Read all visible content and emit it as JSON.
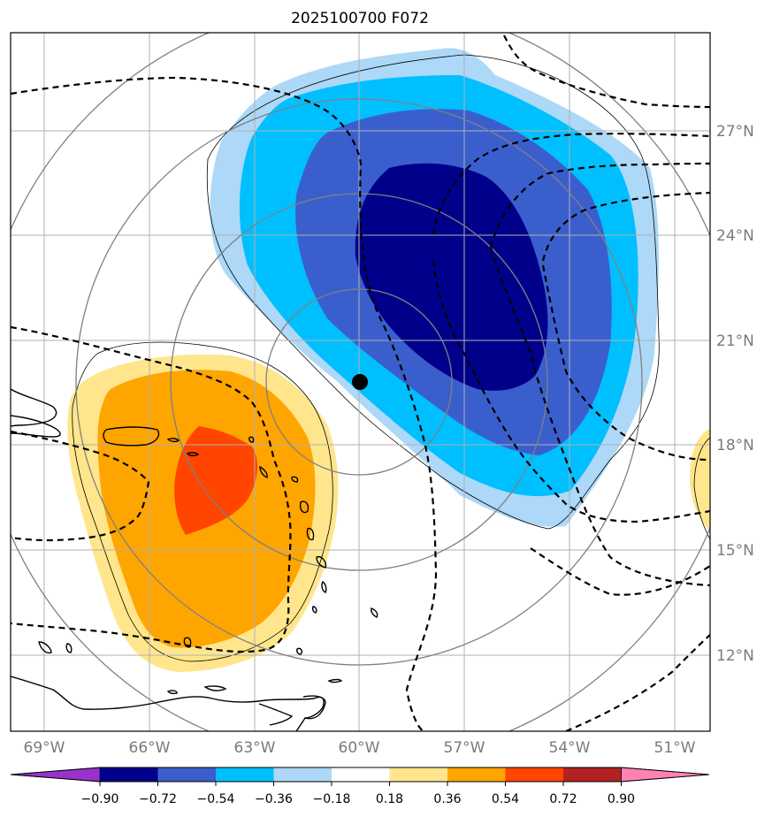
{
  "chart_data": {
    "type": "contour-map",
    "title": "2025100700 F072",
    "projection": "lat-lon map, Caribbean / western Atlantic",
    "lon_range": [
      -70,
      -50.2
    ],
    "lat_range": [
      9.5,
      29.2
    ],
    "lon_ticks": [
      {
        "value": -69,
        "label": "69°W"
      },
      {
        "value": -66,
        "label": "66°W"
      },
      {
        "value": -63,
        "label": "63°W"
      },
      {
        "value": -60,
        "label": "60°W"
      },
      {
        "value": -57,
        "label": "57°W"
      },
      {
        "value": -54,
        "label": "54°W"
      },
      {
        "value": -51,
        "label": "51°W"
      }
    ],
    "lat_ticks": [
      {
        "value": 27,
        "label": "27°N"
      },
      {
        "value": 24,
        "label": "24°N"
      },
      {
        "value": 21,
        "label": "21°N"
      },
      {
        "value": 18,
        "label": "18°N"
      },
      {
        "value": 15,
        "label": "15°N"
      },
      {
        "value": 12,
        "label": "12°N"
      }
    ],
    "grid": true,
    "center_marker": {
      "lon": -60.0,
      "lat": 19.8
    },
    "range_rings_center": {
      "lon": -60.0,
      "lat": 19.8
    },
    "colorbar": {
      "ticks": [
        "−0.90",
        "−0.72",
        "−0.54",
        "−0.36",
        "−0.18",
        "0.18",
        "0.36",
        "0.54",
        "0.72",
        "0.90"
      ],
      "colors": [
        "#9932cc",
        "#00008b",
        "#3a5fcd",
        "#00bfff",
        "#add8f7",
        "#ffffff",
        "#ffe68c",
        "#ffa500",
        "#ff4500",
        "#b22222",
        "#ff82b4"
      ],
      "extend": "both"
    },
    "shaded_regions": [
      {
        "name": "negative anomaly (NE of center)",
        "peak": "< −0.72",
        "center_lon": -57,
        "center_lat": 22.5
      },
      {
        "name": "positive anomaly (SW of center)",
        "peak": "0.54 to 0.72",
        "center_lon": -64.5,
        "center_lat": 17
      },
      {
        "name": "positive anomaly (east edge)",
        "peak": "0.18 to 0.36",
        "center_lon": -50.5,
        "center_lat": 17
      }
    ]
  }
}
